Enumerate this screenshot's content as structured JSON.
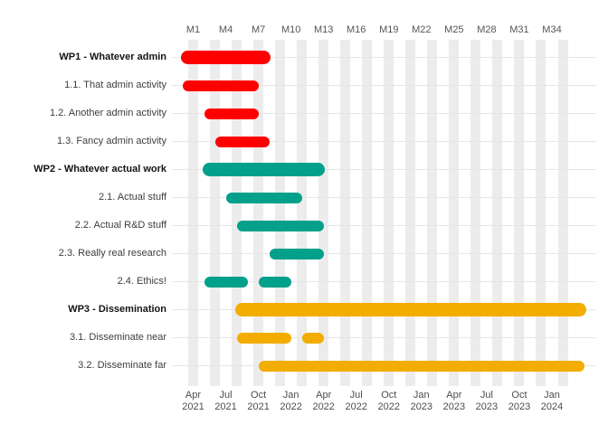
{
  "chart_data": {
    "type": "bar",
    "variant": "gantt",
    "title": "",
    "unit": "project month",
    "x_range": {
      "first_month": 1,
      "last_month": 36
    },
    "grid": "alternating month stripes (odd months), light horizontal row lines",
    "legend_position": "none",
    "stripe_color": "#ececec",
    "colors": {
      "wp1": "#FF0000",
      "wp2": "#00A08A",
      "wp3": "#F2AD00"
    },
    "x_axis_top": {
      "tick_months": [
        1,
        4,
        7,
        10,
        13,
        16,
        19,
        22,
        25,
        28,
        31,
        34
      ],
      "labels": [
        "M1",
        "M4",
        "M7",
        "M10",
        "M13",
        "M16",
        "M19",
        "M22",
        "M25",
        "M28",
        "M31",
        "M34"
      ]
    },
    "x_axis_bottom": {
      "tick_months": [
        1,
        4,
        7,
        10,
        13,
        16,
        19,
        22,
        25,
        28,
        31,
        34
      ],
      "labels": [
        [
          "Apr",
          "2021"
        ],
        [
          "Jul",
          "2021"
        ],
        [
          "Oct",
          "2021"
        ],
        [
          "Jan",
          "2022"
        ],
        [
          "Apr",
          "2022"
        ],
        [
          "Jul",
          "2022"
        ],
        [
          "Oct",
          "2022"
        ],
        [
          "Jan",
          "2023"
        ],
        [
          "Apr",
          "2023"
        ],
        [
          "Jul",
          "2023"
        ],
        [
          "Oct",
          "2023"
        ],
        [
          "Jan",
          "2024"
        ]
      ]
    },
    "rows": [
      {
        "label": "WP1 - Whatever admin",
        "kind": "wp",
        "color": "#FF0000",
        "segments": [
          [
            1,
            7
          ]
        ]
      },
      {
        "label": "1.1. That admin activity",
        "kind": "activity",
        "color": "#FF0000",
        "segments": [
          [
            1,
            6
          ]
        ]
      },
      {
        "label": "1.2. Another admin activity",
        "kind": "activity",
        "color": "#FF0000",
        "segments": [
          [
            3,
            6
          ]
        ]
      },
      {
        "label": "1.3. Fancy admin activity",
        "kind": "activity",
        "color": "#FF0000",
        "segments": [
          [
            4,
            7
          ]
        ]
      },
      {
        "label": "WP2 - Whatever actual work",
        "kind": "wp",
        "color": "#00A08A",
        "segments": [
          [
            3,
            12
          ]
        ]
      },
      {
        "label": "2.1. Actual stuff",
        "kind": "activity",
        "color": "#00A08A",
        "segments": [
          [
            5,
            10
          ]
        ]
      },
      {
        "label": "2.2. Actual R&D stuff",
        "kind": "activity",
        "color": "#00A08A",
        "segments": [
          [
            6,
            12
          ]
        ]
      },
      {
        "label": "2.3. Really real research",
        "kind": "activity",
        "color": "#00A08A",
        "segments": [
          [
            9,
            12
          ]
        ]
      },
      {
        "label": "2.4. Ethics!",
        "kind": "activity",
        "color": "#00A08A",
        "segments": [
          [
            3,
            5
          ],
          [
            8,
            9
          ]
        ]
      },
      {
        "label": "WP3 - Dissemination",
        "kind": "wp",
        "color": "#F2AD00",
        "segments": [
          [
            6,
            36
          ]
        ]
      },
      {
        "label": "3.1. Disseminate near",
        "kind": "activity",
        "color": "#F2AD00",
        "segments": [
          [
            6,
            9
          ],
          [
            12,
            12
          ]
        ]
      },
      {
        "label": "3.2. Disseminate far",
        "kind": "activity",
        "color": "#F2AD00",
        "segments": [
          [
            8,
            36
          ]
        ]
      }
    ]
  }
}
